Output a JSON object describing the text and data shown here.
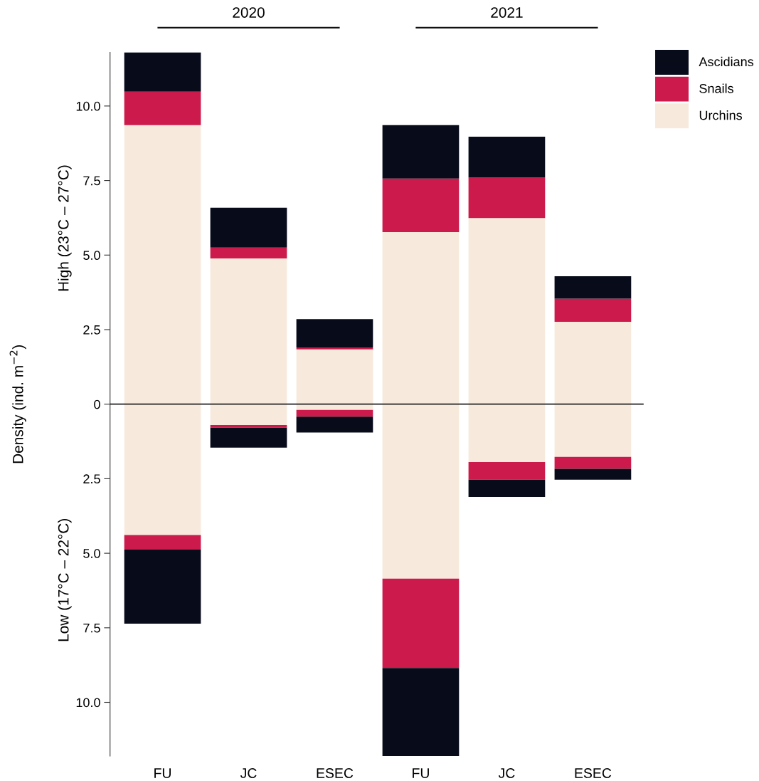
{
  "chart_data": {
    "type": "bar",
    "stacked": true,
    "ylabel": "Density (ind. m$^{−2}$)",
    "categories": [
      "FU",
      "JC",
      "ESEC",
      "FU",
      "JC",
      "ESEC"
    ],
    "series": [
      {
        "name": "Urchins",
        "color": "#f7eadd",
        "values": [
          9.36,
          4.89,
          1.84,
          5.77,
          6.24,
          2.76
        ]
      },
      {
        "name": "Snails",
        "color": "#cb1a4b",
        "values": [
          1.12,
          0.36,
          0.06,
          1.8,
          1.36,
          0.78
        ]
      },
      {
        "name": "Ascidians",
        "color": "#070b1a",
        "values": [
          1.32,
          1.34,
          0.95,
          1.79,
          1.37,
          0.75
        ]
      },
      {
        "color": "#f7eadd",
        "values": [
          -4.39,
          -0.7,
          -0.19,
          -5.85,
          -1.94,
          -1.77
        ]
      },
      {
        "color": "#cb1a4b",
        "values": [
          -0.49,
          -0.09,
          -0.23,
          -3.0,
          -0.59,
          -0.4
        ]
      },
      {
        "color": "#070b1a",
        "values": [
          -2.48,
          -0.67,
          -0.53,
          -2.95,
          -0.58,
          -0.36
        ]
      }
    ],
    "ylim": [
      -11.8,
      11.8
    ],
    "yticks": [
      {
        "value": -10,
        "label": "10.0"
      },
      {
        "value": -7.5,
        "label": "7.5"
      },
      {
        "value": -5,
        "label": "5.0"
      },
      {
        "value": -2.5,
        "label": "2.5"
      },
      0,
      {
        "value": 2.5,
        "label": "2.5"
      },
      {
        "value": 5,
        "label": "5.0"
      },
      {
        "value": 7.5,
        "label": "7.5"
      },
      {
        "value": 10,
        "label": "10.0"
      }
    ],
    "ref_lines": [
      {
        "axis": "y",
        "value": 0,
        "color": "#222222"
      }
    ],
    "annotations": [
      "2020",
      "2021",
      "High (23°C – 27°C)",
      "Low (17°C – 22°C)"
    ],
    "grid": false,
    "legend": "top right"
  }
}
